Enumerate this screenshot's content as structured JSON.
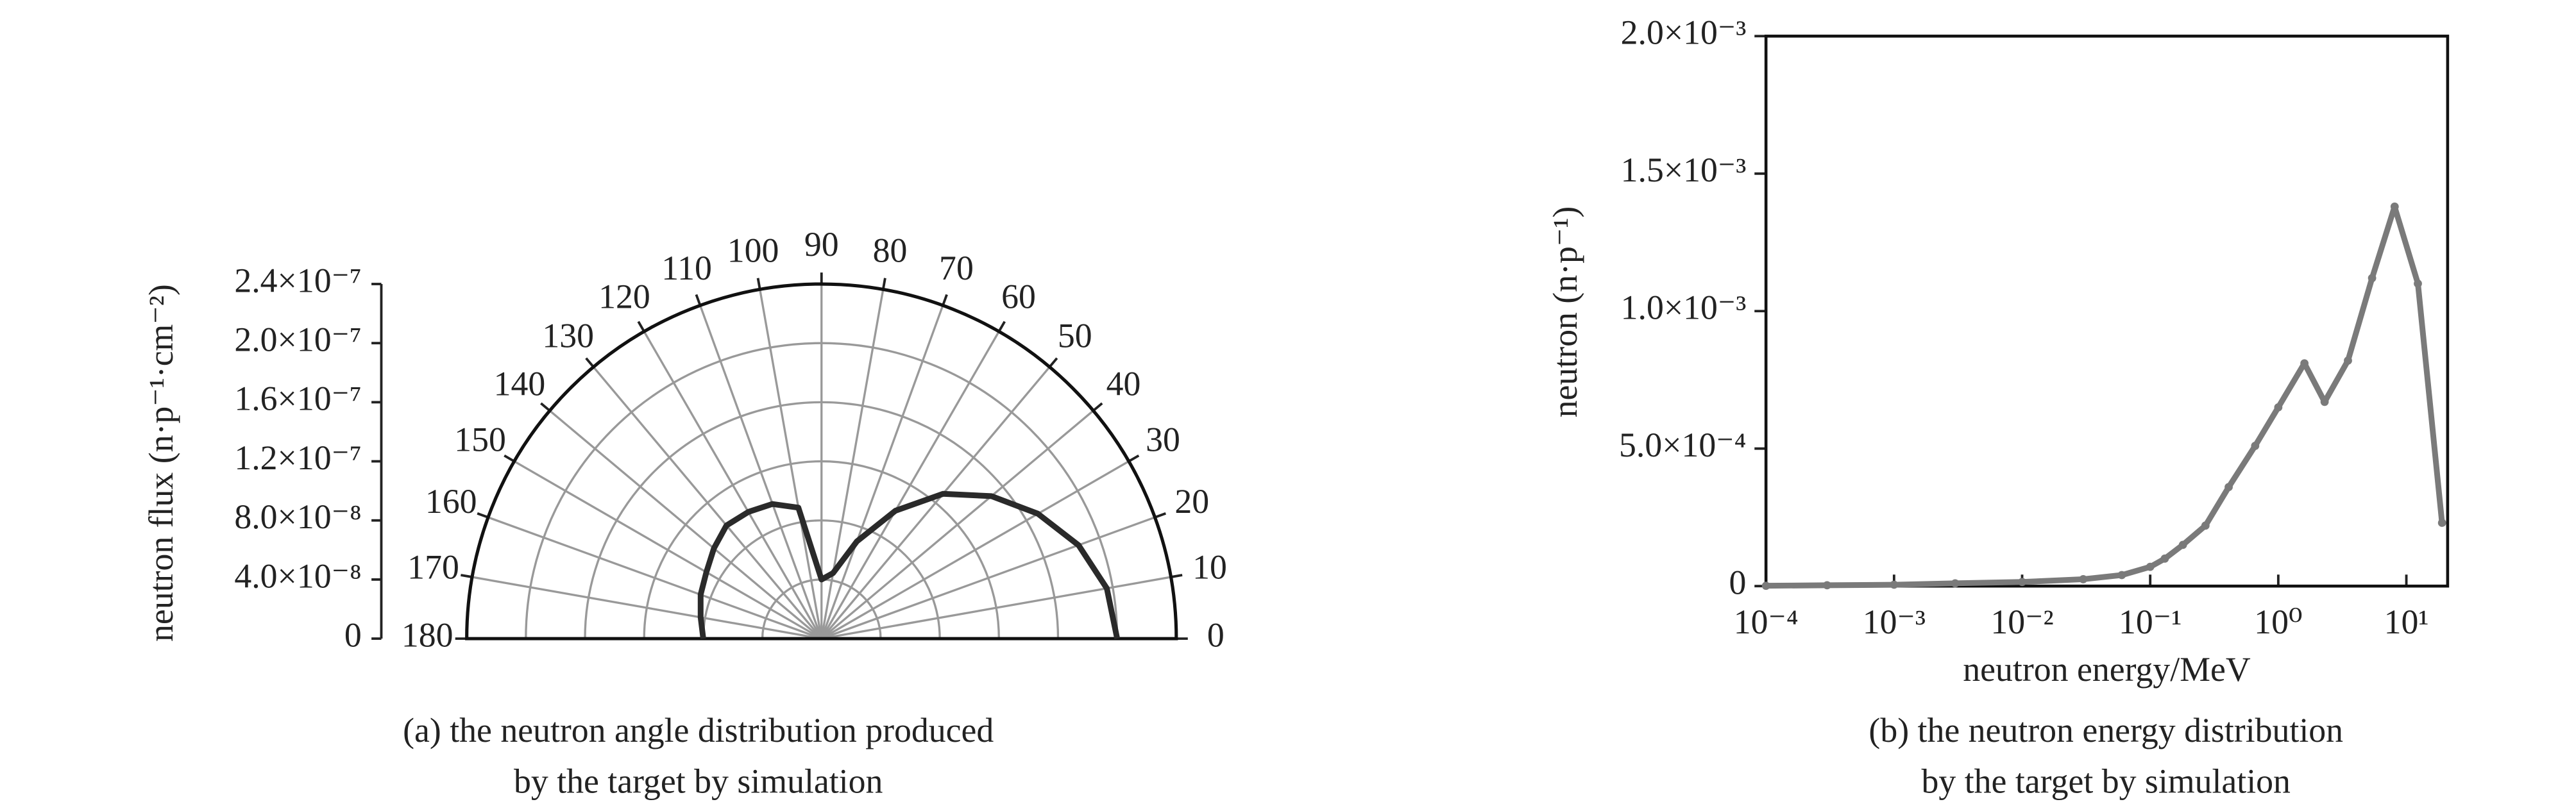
{
  "chart_data": [
    {
      "type": "polar",
      "ylabel": "neutron flux (n·p⁻¹·cm⁻²)",
      "caption": [
        "(a) the neutron angle distribution produced",
        "by the target by simulation"
      ],
      "theta": [
        0,
        10,
        20,
        30,
        40,
        50,
        60,
        70,
        80,
        90,
        100,
        110,
        120,
        130,
        140,
        150,
        160,
        170,
        180
      ],
      "values": [
        2e-07,
        1.96e-07,
        1.85e-07,
        1.69e-07,
        1.5e-07,
        1.28e-07,
        1e-07,
        7e-08,
        4.5e-08,
        4e-08,
        9e-08,
        9.7e-08,
        9.9e-08,
        1e-07,
        9.5e-08,
        9e-08,
        8.7e-08,
        8.3e-08,
        8e-08
      ],
      "color": "#2a2a2a",
      "thetalim": [
        0,
        180
      ],
      "thetaticks": [
        0,
        10,
        20,
        30,
        40,
        50,
        60,
        70,
        80,
        90,
        100,
        110,
        120,
        130,
        140,
        150,
        160,
        170,
        180
      ],
      "rlim": [
        0,
        2.4e-07
      ],
      "rticks": [
        0,
        {
          "value": 4e-08,
          "label": "4.0×10⁻⁸"
        },
        {
          "value": 8e-08,
          "label": "8.0×10⁻⁸"
        },
        {
          "value": 1.2e-07,
          "label": "1.2×10⁻⁷"
        },
        {
          "value": 1.6e-07,
          "label": "1.6×10⁻⁷"
        },
        {
          "value": 2e-07,
          "label": "2.0×10⁻⁷"
        },
        {
          "value": 2.4e-07,
          "label": "2.4×10⁻⁷"
        }
      ],
      "grid": true
    },
    {
      "type": "line",
      "xlabel": "neutron energy/MeV",
      "ylabel": "neutron (n·p⁻¹)",
      "caption": [
        "(b) the neutron energy distribution",
        "by the target by simulation"
      ],
      "x": [
        0.0001,
        0.0003,
        0.001,
        0.003,
        0.01,
        0.03,
        0.06,
        0.1,
        0.13,
        0.18,
        0.27,
        0.41,
        0.66,
        1.0,
        1.6,
        2.3,
        3.5,
        5.4,
        8.1,
        12.3,
        19
      ],
      "values": [
        1e-06,
        3e-06,
        5e-06,
        1e-05,
        1.5e-05,
        2.5e-05,
        4e-05,
        7e-05,
        0.0001,
        0.00015,
        0.00022,
        0.00036,
        0.00051,
        0.00065,
        0.00081,
        0.00067,
        0.00082,
        0.00112,
        0.00138,
        0.0011,
        0.00023
      ],
      "color": "#7a7a7a",
      "xscale": "log",
      "xlim": [
        0.0001,
        21
      ],
      "xticks": [
        {
          "value": 0.0001,
          "label": "10⁻⁴"
        },
        {
          "value": 0.001,
          "label": "10⁻³"
        },
        {
          "value": 0.01,
          "label": "10⁻²"
        },
        {
          "value": 0.1,
          "label": "10⁻¹"
        },
        {
          "value": 1,
          "label": "10⁰"
        },
        {
          "value": 10,
          "label": "10¹"
        }
      ],
      "ylim": [
        0,
        0.002
      ],
      "yticks": [
        0,
        {
          "value": 0.0005,
          "label": "5.0×10⁻⁴"
        },
        {
          "value": 0.001,
          "label": "1.0×10⁻³"
        },
        {
          "value": 0.0015,
          "label": "1.5×10⁻³"
        },
        {
          "value": 0.002,
          "label": "2.0×10⁻³"
        }
      ],
      "grid": false
    }
  ]
}
